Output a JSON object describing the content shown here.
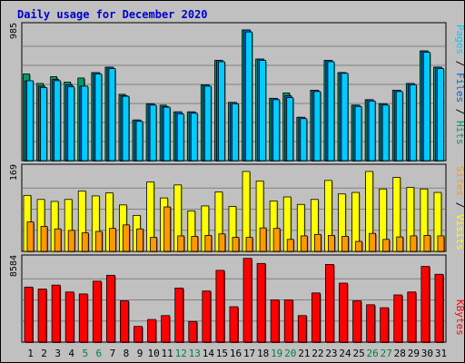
{
  "colors": {
    "frame": "#C0C0C0",
    "plot_bg": "#C0C0C0",
    "grid": "#808080",
    "title": "#0000CC",
    "pages": "#00CCFF",
    "pages_dark": "#007070",
    "hits": "#009966",
    "hits_dark": "#004433",
    "files": "#0066CC",
    "visits": "#FFFF00",
    "visits_dark": "#909000",
    "sites": "#FF9900",
    "sites_dark": "#804000",
    "kbytes": "#FF0000",
    "kbytes_dark": "#800000",
    "weekend": "#008040",
    "weekday": "#000000",
    "separator": "#000000"
  },
  "chart_data": [
    {
      "type": "bar",
      "title": "Daily usage for December 2020",
      "panel": "hits-files-pages",
      "ymax_label": "985",
      "ylim": [
        0,
        985
      ],
      "right_label": {
        "parts": [
          {
            "text": "Pages",
            "color": "#00CCFF"
          },
          {
            "text": " / ",
            "color": "#000000"
          },
          {
            "text": "Files",
            "color": "#0066CC"
          },
          {
            "text": " / ",
            "color": "#000000"
          },
          {
            "text": "Hits",
            "color": "#009966"
          }
        ]
      },
      "categories": [
        "1",
        "2",
        "3",
        "4",
        "5",
        "6",
        "7",
        "8",
        "9",
        "10",
        "11",
        "12",
        "13",
        "14",
        "15",
        "16",
        "17",
        "18",
        "19",
        "20",
        "21",
        "22",
        "23",
        "24",
        "25",
        "26",
        "27",
        "28",
        "29",
        "30",
        "31"
      ],
      "weekend_days": [
        5,
        6,
        12,
        13,
        19,
        20,
        26,
        27
      ],
      "series": [
        {
          "name": "Hits",
          "values": [
            640,
            570,
            620,
            580,
            610,
            650,
            690,
            490,
            300,
            420,
            410,
            360,
            360,
            560,
            740,
            430,
            965,
            750,
            460,
            500,
            320,
            520,
            740,
            650,
            410,
            450,
            420,
            520,
            570,
            810,
            690
          ]
        },
        {
          "name": "Files",
          "values": [
            590,
            550,
            600,
            560,
            550,
            650,
            690,
            480,
            300,
            420,
            400,
            360,
            360,
            560,
            740,
            430,
            965,
            750,
            460,
            480,
            320,
            520,
            740,
            650,
            410,
            450,
            420,
            520,
            570,
            810,
            690
          ]
        },
        {
          "name": "Pages",
          "values": [
            590,
            540,
            590,
            545,
            550,
            640,
            680,
            475,
            290,
            410,
            395,
            345,
            350,
            550,
            730,
            420,
            950,
            740,
            450,
            465,
            310,
            510,
            730,
            645,
            400,
            440,
            410,
            510,
            560,
            800,
            680
          ]
        }
      ]
    },
    {
      "type": "bar",
      "panel": "visits-sites",
      "ymax_label": "169",
      "ylim": [
        0,
        169
      ],
      "right_label": {
        "parts": [
          {
            "text": "Sites",
            "color": "#FF9900"
          },
          {
            "text": " / ",
            "color": "#000000"
          },
          {
            "text": "Visits",
            "color": "#FFFF00"
          }
        ]
      },
      "series": [
        {
          "name": "Visits",
          "values": [
            112,
            104,
            100,
            104,
            121,
            111,
            117,
            93,
            72,
            139,
            107,
            133,
            81,
            91,
            119,
            90,
            160,
            141,
            101,
            109,
            94,
            104,
            142,
            115,
            118,
            160,
            125,
            148,
            128,
            125,
            118
          ]
        },
        {
          "name": "Sites",
          "values": [
            59,
            50,
            45,
            42,
            37,
            40,
            46,
            53,
            45,
            28,
            89,
            31,
            30,
            32,
            35,
            28,
            28,
            47,
            46,
            24,
            31,
            34,
            32,
            30,
            20,
            36,
            24,
            29,
            31,
            32,
            31
          ]
        }
      ]
    },
    {
      "type": "bar",
      "panel": "kbytes",
      "ymax_label": "8584",
      "ylim": [
        0,
        8584
      ],
      "right_label": {
        "parts": [
          {
            "text": "KBytes",
            "color": "#FF0000"
          }
        ]
      },
      "series": [
        {
          "name": "KBytes",
          "values": [
            5600,
            5400,
            5800,
            5100,
            4900,
            6200,
            6800,
            4200,
            1600,
            2300,
            2700,
            5500,
            2100,
            5200,
            7300,
            3600,
            8520,
            8000,
            4300,
            4300,
            2700,
            5000,
            7900,
            6000,
            4200,
            3800,
            3500,
            4800,
            5100,
            7700,
            6900
          ]
        }
      ]
    }
  ]
}
